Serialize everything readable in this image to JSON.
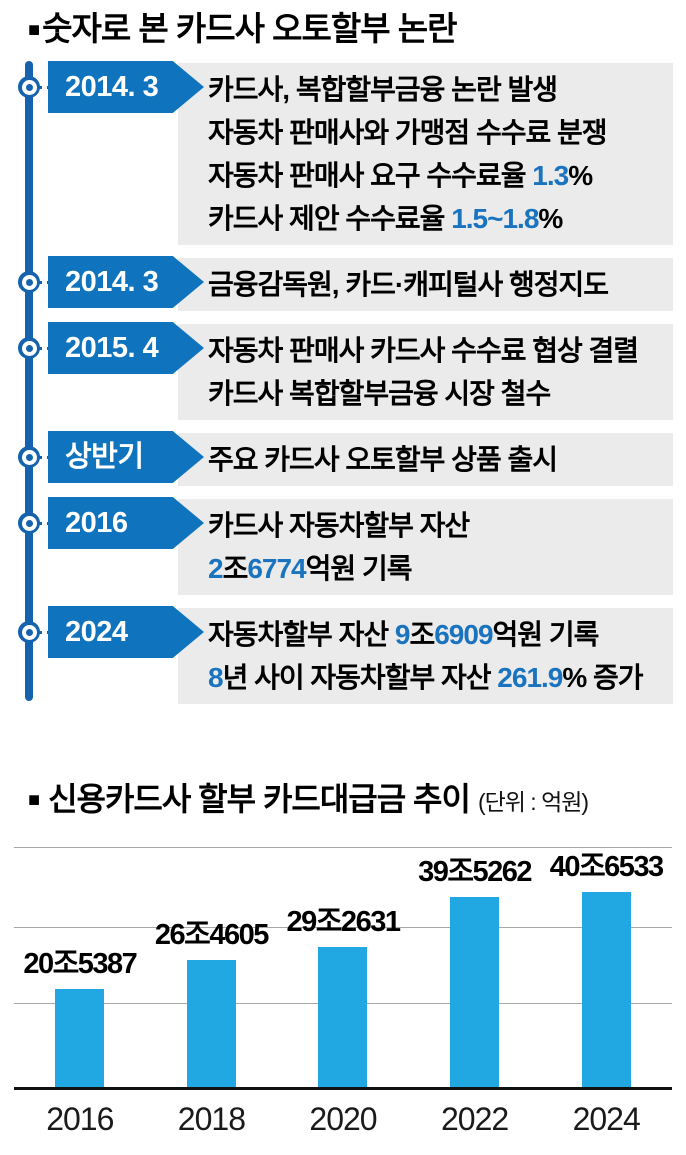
{
  "header": {
    "bullet": "■",
    "title": "숫자로 본 카드사 오토할부 논란"
  },
  "timeline": {
    "events": [
      {
        "date": "2014. 3",
        "lines": [
          [
            {
              "text": "카드사, 복합할부금융 논란 발생"
            }
          ],
          [
            {
              "text": "자동차 판매사와 가맹점 수수료 분쟁"
            }
          ],
          [
            {
              "text": "자동차 판매사 요구 수수료율 "
            },
            {
              "text": "1.3",
              "em": true
            },
            {
              "text": "%"
            }
          ],
          [
            {
              "text": "카드사 제안 수수료율 "
            },
            {
              "text": "1.5~1.8",
              "em": true
            },
            {
              "text": "%"
            }
          ]
        ]
      },
      {
        "date": "2014. 3",
        "lines": [
          [
            {
              "text": "금융감독원, 카드·캐피털사 행정지도"
            }
          ]
        ]
      },
      {
        "date": "2015. 4",
        "lines": [
          [
            {
              "text": "자동차 판매사 카드사 수수료 협상 결렬"
            }
          ],
          [
            {
              "text": "카드사 복합할부금융 시장 철수"
            }
          ]
        ]
      },
      {
        "date": "상반기",
        "lines": [
          [
            {
              "text": "주요 카드사 오토할부 상품 출시"
            }
          ]
        ]
      },
      {
        "date": "2016",
        "lines": [
          [
            {
              "text": "카드사 자동차할부 자산"
            }
          ],
          [
            {
              "text": "2",
              "em": true
            },
            {
              "text": "조"
            },
            {
              "text": "6774",
              "em": true
            },
            {
              "text": "억원 기록"
            }
          ]
        ]
      },
      {
        "date": "2024",
        "lines": [
          [
            {
              "text": "자동차할부 자산 "
            },
            {
              "text": "9",
              "em": true
            },
            {
              "text": "조"
            },
            {
              "text": "6909",
              "em": true
            },
            {
              "text": "억원 기록"
            }
          ],
          [
            {
              "text": "8",
              "em": true
            },
            {
              "text": "년 사이 자동차할부 자산 "
            },
            {
              "text": "261.9",
              "em": true
            },
            {
              "text": "% 증가"
            }
          ]
        ]
      }
    ]
  },
  "chart_data": {
    "type": "bar",
    "bullet": "■",
    "title": "신용카드사 할부 카드대급금 추이",
    "unit_label": "(단위 : 억원)",
    "categories": [
      "2016",
      "2018",
      "2020",
      "2022",
      "2024"
    ],
    "values": [
      205387,
      264605,
      292631,
      395262,
      406533
    ],
    "value_labels": [
      "20조5387",
      "26조4605",
      "29조2631",
      "39조5262",
      "40조6533"
    ],
    "ylim": [
      0,
      406533
    ],
    "grid": true,
    "legend": "none"
  },
  "colors": {
    "accent_blue": "#0f73bd",
    "line_blue": "#1563ae",
    "em_blue": "#1a73be",
    "bar_blue": "#21a7e2",
    "panel_gray": "#ebebeb",
    "grid_gray": "#a8a8a8"
  }
}
